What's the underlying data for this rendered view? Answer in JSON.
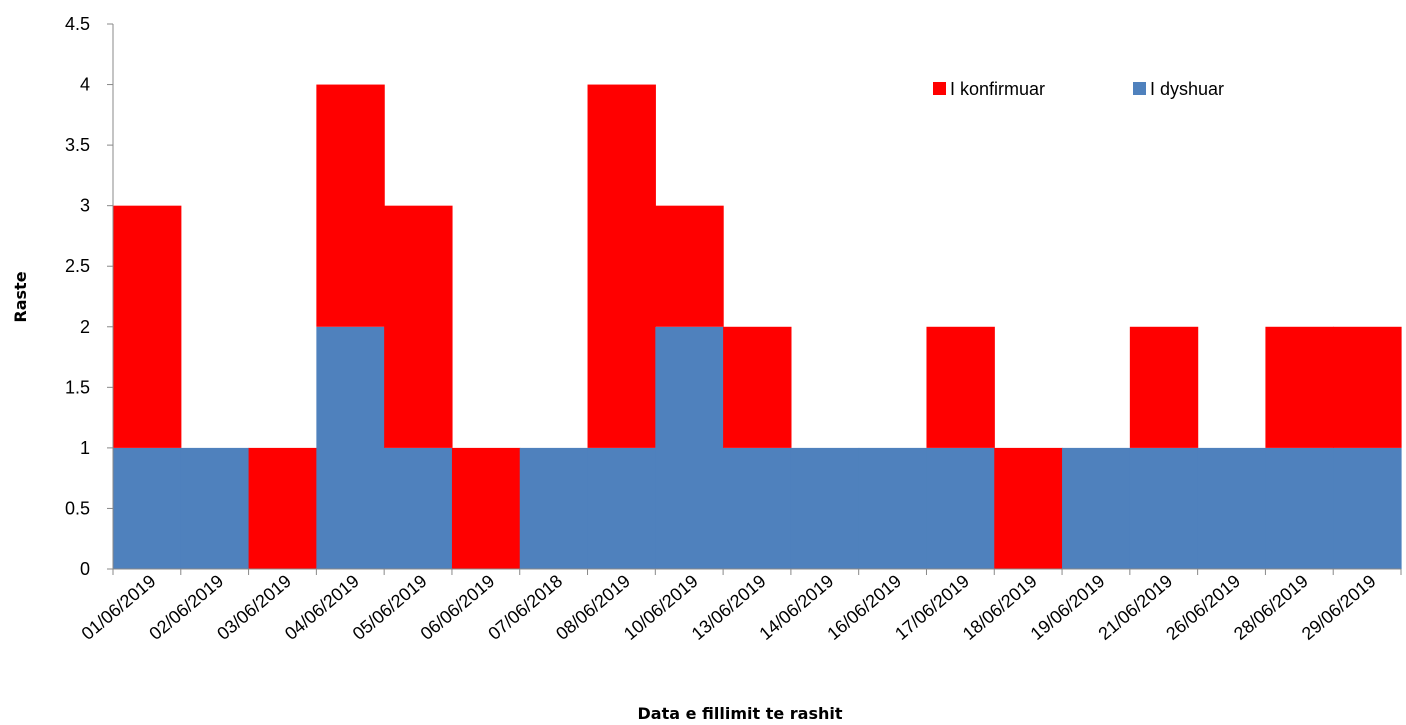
{
  "chart_data": {
    "type": "bar",
    "stacked": true,
    "categories": [
      "01/06/2019",
      "02/06/2019",
      "03/06/2019",
      "04/06/2019",
      "05/06/2019",
      "06/06/2019",
      "07/06/2018",
      "08/06/2019",
      "10/06/2019",
      "13/06/2019",
      "14/06/2019",
      "16/06/2019",
      "17/06/2019",
      "18/06/2019",
      "19/06/2019",
      "21/06/2019",
      "26/06/2019",
      "28/06/2019",
      "29/06/2019"
    ],
    "series": [
      {
        "name": "I dyshuar",
        "color": "#4F81BD",
        "values": [
          1,
          1,
          0,
          2,
          1,
          0,
          1,
          1,
          2,
          1,
          1,
          1,
          1,
          0,
          1,
          1,
          1,
          1,
          1
        ]
      },
      {
        "name": "I konfirmuar",
        "color": "#FF0000",
        "values": [
          2,
          0,
          1,
          2,
          2,
          1,
          0,
          3,
          1,
          1,
          0,
          0,
          1,
          1,
          0,
          1,
          0,
          1,
          1
        ]
      }
    ],
    "title": "",
    "xlabel": "Data e fillimit te  rashit",
    "ylabel": "Raste",
    "ylim": [
      0,
      4.5
    ],
    "yticks": [
      "0",
      "0.5",
      "1",
      "1.5",
      "2",
      "2.5",
      "3",
      "3.5",
      "4",
      "4.5"
    ],
    "legend": {
      "position": "top-right",
      "items": [
        {
          "label": "I konfirmuar",
          "color": "#FF0000"
        },
        {
          "label": "I dyshuar",
          "color": "#4F81BD"
        }
      ]
    },
    "gap_width": 0
  }
}
